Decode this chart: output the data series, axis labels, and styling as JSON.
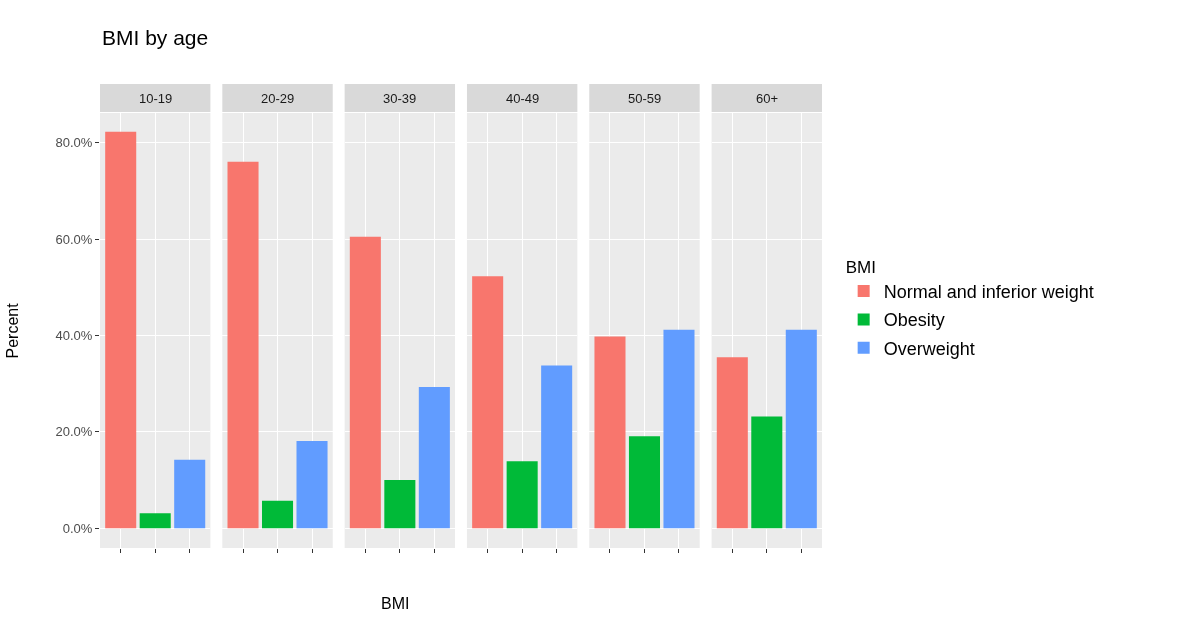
{
  "chart_data": {
    "type": "bar",
    "title": "BMI by age",
    "xlabel": "BMI",
    "ylabel": "Percent",
    "legend_title": "BMI",
    "legend": "right",
    "grid": true,
    "categories": [
      "10-19",
      "20-29",
      "30-39",
      "40-49",
      "50-59",
      "60+"
    ],
    "ylim": [
      -4.1,
      86.2
    ],
    "yticks": [
      {
        "value": 0,
        "label": "0.0%"
      },
      {
        "value": 20,
        "label": "20.0%"
      },
      {
        "value": 40,
        "label": "40.0%"
      },
      {
        "value": 60,
        "label": "60.0%"
      },
      {
        "value": 80,
        "label": "80.0%"
      }
    ],
    "series": [
      {
        "name": "Normal and inferior weight",
        "color": "#f8766d",
        "values": [
          82.3,
          76.1,
          60.5,
          52.3,
          39.8,
          35.5
        ]
      },
      {
        "name": "Obesity",
        "color": "#00ba38",
        "values": [
          3.1,
          5.7,
          10.0,
          13.9,
          19.1,
          23.2
        ]
      },
      {
        "name": "Overweight",
        "color": "#619cff",
        "values": [
          14.2,
          18.1,
          29.3,
          33.8,
          41.2,
          41.2
        ]
      }
    ]
  }
}
